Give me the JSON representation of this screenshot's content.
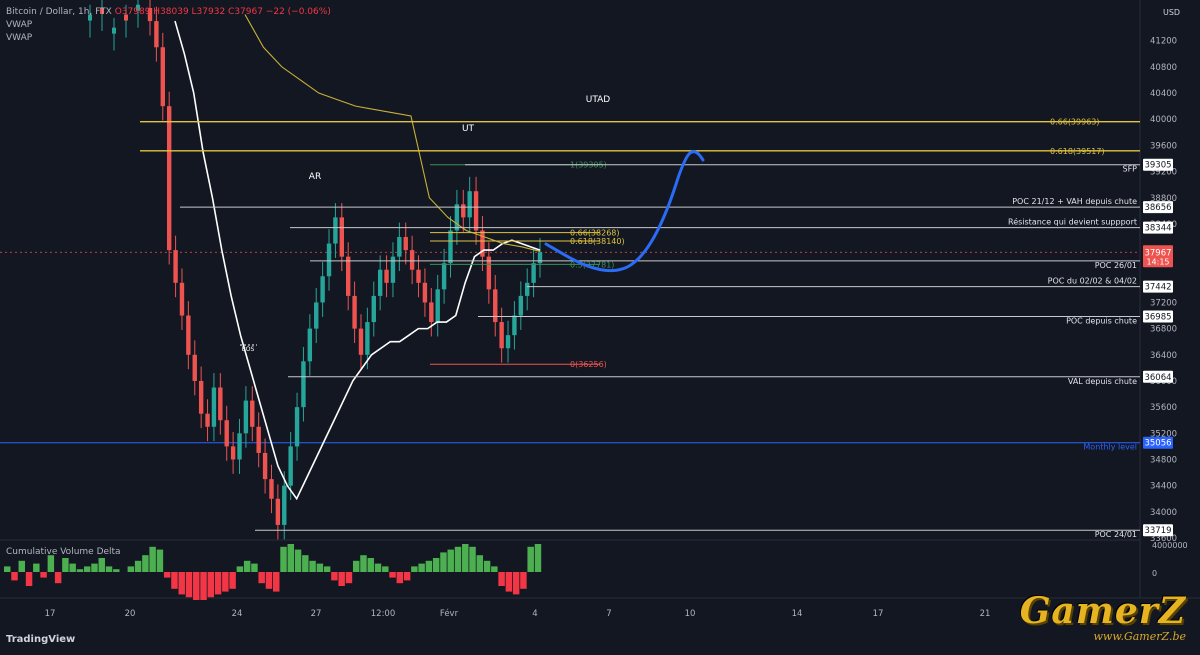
{
  "header": {
    "symbol": "Bitcoin / Dollar, 1h, FTX",
    "ohlc": "O37989 H38039 L37932 C37967 −22 (−0.06%)",
    "indicator1": "VWAP",
    "indicator2": "VWAP"
  },
  "cvd_label": "Cumulative Volume Delta",
  "brand": "TradingView",
  "watermark": "GamerZ",
  "watermark_sub": "www.GamerZ.be",
  "currency": "USD",
  "colors": {
    "background": "#131722",
    "up": "#26a69a",
    "down": "#ef5350",
    "vwap": "#ffffff",
    "vwap_anchored": "#c9b037",
    "fib_gold": "#e0c341",
    "fib_green": "#3a8f5a",
    "level": "#d1d4dc",
    "monthly": "#2962ff",
    "projection": "#2a6cf5",
    "cvd_pos": "#4caf50",
    "cvd_neg": "#f23645"
  },
  "chart_data": {
    "type": "candlestick",
    "title": "",
    "ylim": [
      33600,
      41700
    ],
    "y_ticks": [
      41200,
      40800,
      40400,
      40000,
      39600,
      39200,
      38800,
      38400,
      37200,
      36800,
      36400,
      36000,
      35600,
      35200,
      34800,
      34400,
      34000,
      33600
    ],
    "x_ticks": [
      {
        "label": "17",
        "i": 0
      },
      {
        "label": "20",
        "i": 1
      },
      {
        "label": "24",
        "i": 2
      },
      {
        "label": "27",
        "i": 3
      },
      {
        "label": "12:00",
        "i": 4
      },
      {
        "label": "Févr",
        "i": 5
      },
      {
        "label": "4",
        "i": 6
      },
      {
        "label": "7",
        "i": 7
      },
      {
        "label": "10",
        "i": 8
      },
      {
        "label": "14",
        "i": 9
      },
      {
        "label": "17",
        "i": 10
      },
      {
        "label": "21",
        "i": 11
      }
    ],
    "candles_close": [
      41500,
      41100,
      40200,
      38000,
      37500,
      37000,
      36400,
      36000,
      35500,
      35300,
      35900,
      35400,
      35000,
      34800,
      35200,
      35700,
      35300,
      34900,
      34500,
      34200,
      33800,
      34400,
      35000,
      35600,
      36300,
      36800,
      37200,
      37600,
      38100,
      38500,
      37900,
      37300,
      36800,
      36400,
      36900,
      37300,
      37700,
      37500,
      37900,
      38200,
      38000,
      37700,
      37500,
      37200,
      36900,
      37400,
      37800,
      38300,
      38700,
      38500,
      38900,
      38300,
      37900,
      37400,
      36900,
      36500,
      36700,
      37000,
      37300,
      37500,
      37800,
      37967
    ],
    "vwap": [
      41500,
      41000,
      40400,
      39500,
      38800,
      38000,
      37300,
      36700,
      36200,
      35700,
      35200,
      34700,
      34400,
      34200,
      34500,
      34800,
      35100,
      35400,
      35700,
      36000,
      36200,
      36400,
      36500,
      36600,
      36600,
      36700,
      36800,
      36800,
      36900,
      36900,
      37000,
      37500,
      37900,
      38000,
      38000,
      38100,
      38150,
      38100,
      38050,
      38000
    ],
    "vwap_anchored": [
      41600,
      41100,
      40800,
      40600,
      40400,
      40300,
      40200,
      40150,
      40100,
      40050,
      38800,
      38500,
      38300,
      38200,
      38100,
      38050,
      37980
    ],
    "annotations": [
      {
        "text": "UTAD",
        "x": 598,
        "y": 102
      },
      {
        "text": "UT",
        "x": 468,
        "y": 131
      },
      {
        "text": "AR",
        "x": 315,
        "y": 179
      },
      {
        "text": "BOS",
        "x": 248,
        "y": 351
      }
    ],
    "fib_levels": [
      {
        "label": "0.66(39963)",
        "price": 39963,
        "color": "gold"
      },
      {
        "label": "0.618(39517)",
        "price": 39517,
        "color": "gold"
      },
      {
        "label": "1(39305)",
        "price": 39305,
        "color": "green"
      },
      {
        "label": "0.66(38268)",
        "price": 38268,
        "color": "gold"
      },
      {
        "label": "0.618(38140)",
        "price": 38140,
        "color": "gold"
      },
      {
        "label": "0.5(37781)",
        "price": 37781,
        "color": "green"
      },
      {
        "label": "0(36256)",
        "price": 36256,
        "color": "red"
      }
    ],
    "levels": [
      {
        "price": "39305",
        "label": "SFP"
      },
      {
        "price": "38656",
        "label": "POC 21/12 + VAH depuis chute"
      },
      {
        "price": "38344",
        "label": "Résistance qui devient suppport"
      },
      {
        "price": "37836",
        "label": "POC 26/01"
      },
      {
        "price": "37442",
        "label": "POC du 02/02 & 04/02"
      },
      {
        "price": "36985",
        "label": "POC depuis chute"
      },
      {
        "price": "36064",
        "label": "VAL depuis chute"
      },
      {
        "price": "35056",
        "label": "Monthly level"
      },
      {
        "price": "33719",
        "label": "POC 24/01"
      }
    ],
    "current_price": "37967",
    "countdown": "14:15",
    "cvd_axis": [
      "4000000",
      "0"
    ],
    "cvd_values": [
      0.2,
      -0.3,
      0.4,
      -0.5,
      0.3,
      -0.2,
      0.6,
      -0.4,
      0.5,
      0.3,
      0.1,
      0.2,
      0.3,
      0.5,
      0.2,
      0.1,
      0.0,
      0.2,
      0.4,
      0.6,
      0.9,
      0.8,
      -0.2,
      -0.6,
      -0.8,
      -0.9,
      -1.0,
      -1.0,
      -0.9,
      -0.8,
      -0.7,
      -0.6,
      0.2,
      0.4,
      0.3,
      -0.4,
      -0.6,
      -0.7,
      0.9,
      1.0,
      0.8,
      0.6,
      0.4,
      0.3,
      0.2,
      -0.3,
      -0.5,
      -0.4,
      0.4,
      0.6,
      0.5,
      0.3,
      0.2,
      -0.2,
      -0.4,
      -0.3,
      0.2,
      0.3,
      0.4,
      0.5,
      0.7,
      0.8,
      0.9,
      1.0,
      0.9,
      0.6,
      0.4,
      0.2,
      -0.5,
      -0.7,
      -0.8,
      -0.6,
      0.9,
      1.0
    ]
  }
}
